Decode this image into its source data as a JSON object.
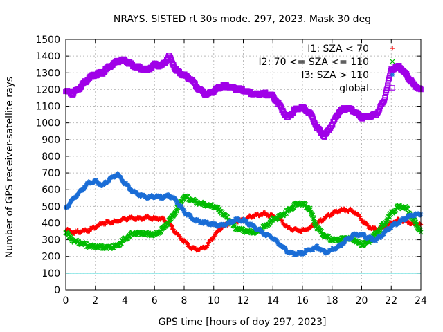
{
  "chart_data": {
    "type": "scatter",
    "title": "NRAYS. SISTED rt 30s mode. 297, 2023. Mask 30 deg",
    "xlabel": "GPS time [hours of doy 297, 2023]",
    "ylabel": "Number of GPS receiver-satellite rays",
    "xlim": [
      0,
      24
    ],
    "ylim": [
      0,
      1500
    ],
    "xticks": [
      0,
      2,
      4,
      6,
      8,
      10,
      12,
      14,
      16,
      18,
      20,
      22,
      24
    ],
    "yticks": [
      0,
      100,
      200,
      300,
      400,
      500,
      600,
      700,
      800,
      900,
      1000,
      1100,
      1200,
      1300,
      1400,
      1500
    ],
    "grid": true,
    "legend_position": "top-right",
    "reference_line": {
      "y": 100,
      "color": "#00cccc"
    },
    "series": [
      {
        "name": "I1: SZA < 70",
        "color": "#ff0000",
        "marker": "+",
        "x": [
          0,
          0.5,
          1,
          1.5,
          2,
          2.5,
          3,
          3.5,
          4,
          4.5,
          5,
          5.5,
          6,
          6.5,
          7,
          7.5,
          8,
          8.5,
          9,
          9.5,
          10,
          10.5,
          11,
          11.5,
          12,
          12.5,
          13,
          13.5,
          14,
          14.5,
          15,
          15.5,
          16,
          16.5,
          17,
          17.5,
          18,
          18.5,
          19,
          19.5,
          20,
          20.5,
          21,
          21.5,
          22,
          22.5,
          23,
          23.5,
          24
        ],
        "values": [
          360,
          345,
          350,
          355,
          375,
          400,
          405,
          410,
          425,
          430,
          425,
          435,
          425,
          430,
          395,
          335,
          290,
          250,
          240,
          260,
          320,
          370,
          400,
          410,
          415,
          440,
          450,
          455,
          440,
          420,
          370,
          360,
          355,
          370,
          400,
          430,
          455,
          475,
          480,
          470,
          420,
          375,
          360,
          375,
          400,
          420,
          410,
          395,
          390
        ]
      },
      {
        "name": "I2: 70 <= SZA <= 110",
        "color": "#00bb00",
        "marker": "x",
        "x": [
          0,
          0.5,
          1,
          1.5,
          2,
          2.5,
          3,
          3.5,
          4,
          4.5,
          5,
          5.5,
          6,
          6.5,
          7,
          7.5,
          8,
          8.5,
          9,
          9.5,
          10,
          10.5,
          11,
          11.5,
          12,
          12.5,
          13,
          13.5,
          14,
          14.5,
          15,
          15.5,
          16,
          16.5,
          17,
          17.5,
          18,
          18.5,
          19,
          19.5,
          20,
          20.5,
          21,
          21.5,
          22,
          22.5,
          23,
          23.5,
          24
        ],
        "values": [
          345,
          295,
          280,
          265,
          260,
          255,
          255,
          265,
          305,
          335,
          340,
          335,
          330,
          360,
          410,
          480,
          560,
          540,
          520,
          510,
          500,
          470,
          420,
          370,
          355,
          345,
          350,
          380,
          420,
          440,
          470,
          510,
          520,
          480,
          370,
          320,
          300,
          300,
          310,
          300,
          270,
          290,
          340,
          390,
          460,
          500,
          490,
          420,
          345
        ]
      },
      {
        "name": "I3: SZA > 110",
        "color": "#1a6dd6",
        "marker": "*",
        "x": [
          0,
          0.5,
          1,
          1.5,
          2,
          2.5,
          3,
          3.5,
          4,
          4.5,
          5,
          5.5,
          6,
          6.5,
          7,
          7.5,
          8,
          8.5,
          9,
          9.5,
          10,
          10.5,
          11,
          11.5,
          12,
          12.5,
          13,
          13.5,
          14,
          14.5,
          15,
          15.5,
          16,
          16.5,
          17,
          17.5,
          18,
          18.5,
          19,
          19.5,
          20,
          20.5,
          21,
          21.5,
          22,
          22.5,
          23,
          23.5,
          24
        ],
        "values": [
          490,
          545,
          590,
          640,
          650,
          625,
          665,
          690,
          640,
          590,
          570,
          555,
          560,
          555,
          565,
          530,
          470,
          430,
          410,
          400,
          390,
          385,
          400,
          420,
          415,
          390,
          360,
          330,
          310,
          270,
          230,
          215,
          220,
          240,
          255,
          225,
          240,
          260,
          300,
          330,
          330,
          310,
          300,
          340,
          380,
          405,
          430,
          450,
          455
        ]
      },
      {
        "name": "global",
        "color": "#a000e8",
        "marker": "square",
        "x": [
          0,
          0.5,
          1,
          1.5,
          2,
          2.5,
          3,
          3.5,
          4,
          4.5,
          5,
          5.5,
          6,
          6.5,
          7,
          7.5,
          8,
          8.5,
          9,
          9.5,
          10,
          10.5,
          11,
          11.5,
          12,
          12.5,
          13,
          13.5,
          14,
          14.5,
          15,
          15.5,
          16,
          16.5,
          17,
          17.5,
          18,
          18.5,
          19,
          19.5,
          20,
          20.5,
          21,
          21.5,
          22,
          22.5,
          23,
          23.5,
          24
        ],
        "values": [
          1190,
          1175,
          1215,
          1265,
          1290,
          1300,
          1340,
          1370,
          1375,
          1345,
          1330,
          1315,
          1350,
          1340,
          1400,
          1310,
          1285,
          1260,
          1200,
          1170,
          1190,
          1220,
          1220,
          1205,
          1195,
          1180,
          1170,
          1175,
          1160,
          1100,
          1030,
          1080,
          1090,
          1060,
          970,
          920,
          990,
          1070,
          1090,
          1070,
          1030,
          1040,
          1050,
          1130,
          1320,
          1340,
          1290,
          1230,
          1200
        ]
      }
    ]
  }
}
